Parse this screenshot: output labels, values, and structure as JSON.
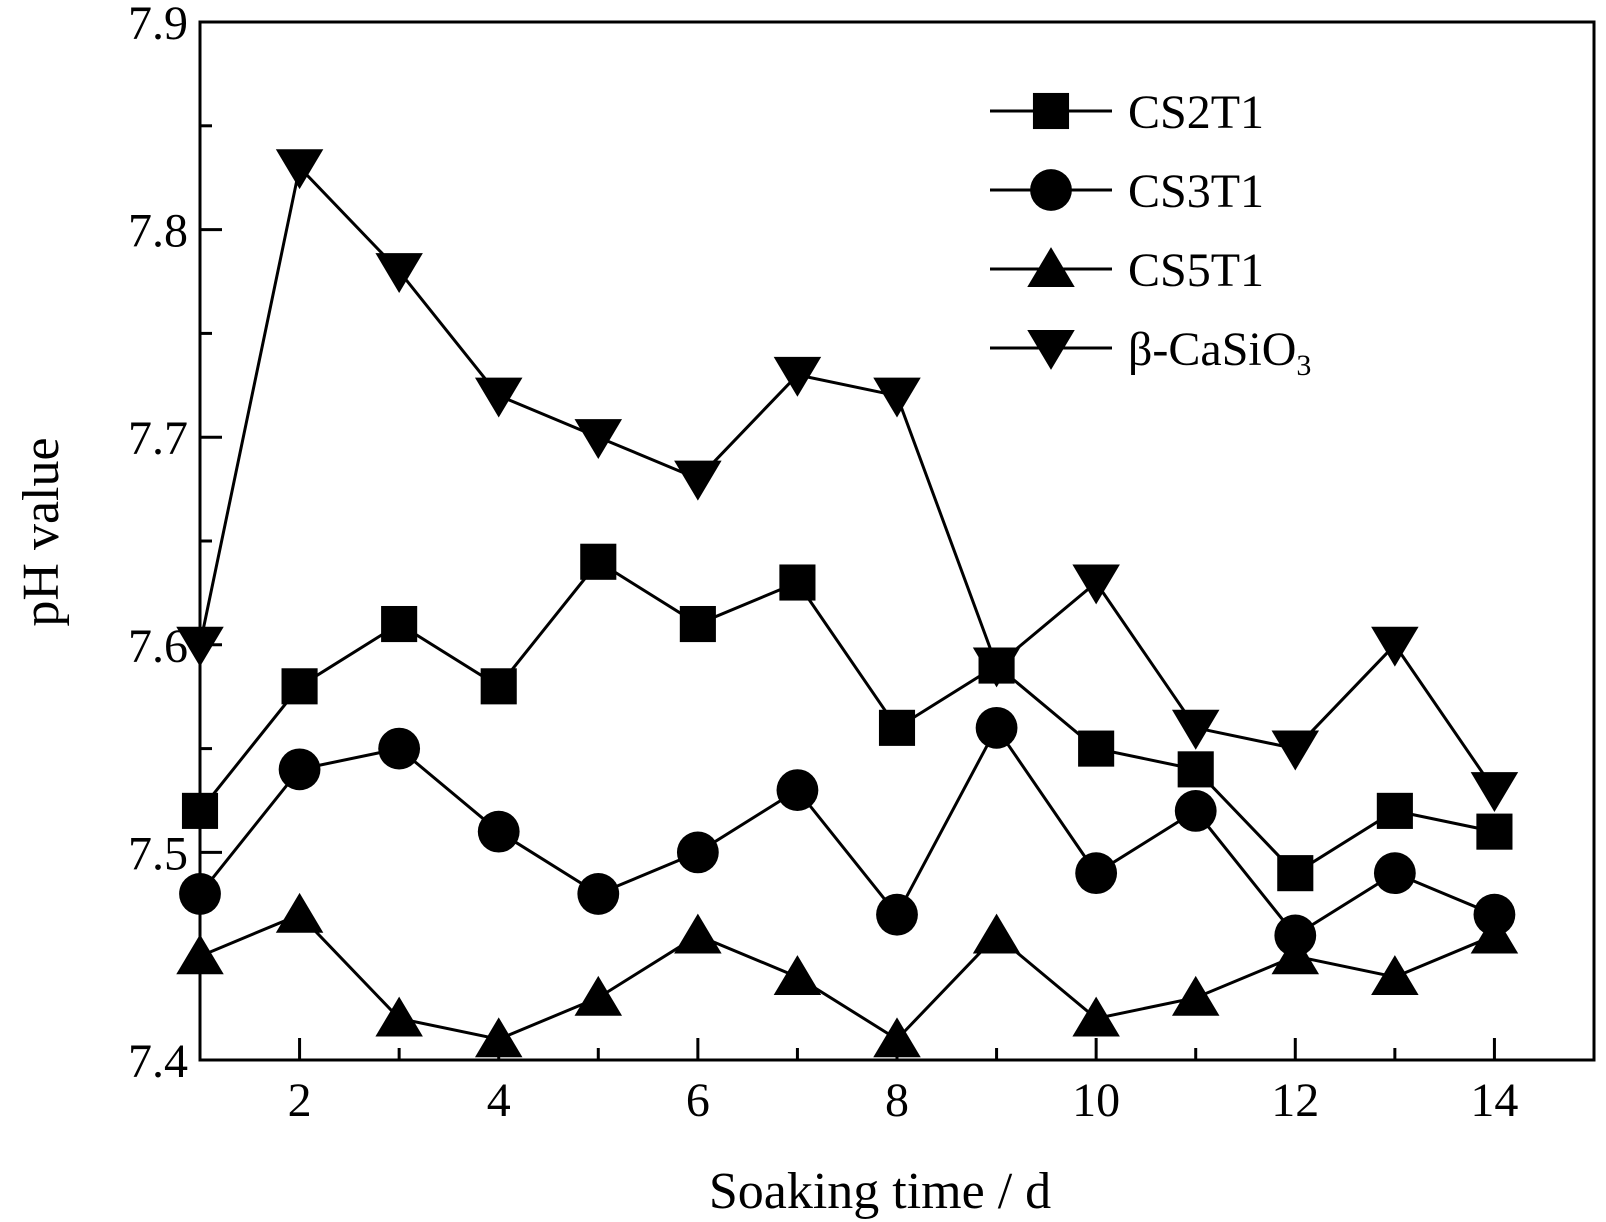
{
  "chart_data": {
    "type": "line",
    "title": "",
    "xlabel": "Soaking time / d",
    "ylabel": "pH value",
    "xlim": [
      1,
      15
    ],
    "ylim": [
      7.4,
      7.9
    ],
    "x_ticks": [
      2,
      4,
      6,
      8,
      10,
      12,
      14
    ],
    "x_minor_ticks": [
      3,
      5,
      7,
      9,
      11,
      13
    ],
    "y_ticks": [
      7.4,
      7.5,
      7.6,
      7.7,
      7.8,
      7.9
    ],
    "y_minor_ticks": [
      7.45,
      7.55,
      7.65,
      7.75,
      7.85
    ],
    "x_tick_labels": [
      "2",
      "4",
      "6",
      "8",
      "10",
      "12",
      "14"
    ],
    "y_tick_labels": [
      "7.4",
      "7.5",
      "7.6",
      "7.7",
      "7.8",
      "7.9"
    ],
    "grid": false,
    "legend_position": "top-right",
    "x": [
      1,
      2,
      3,
      4,
      5,
      6,
      7,
      8,
      9,
      10,
      11,
      12,
      13,
      14
    ],
    "series": [
      {
        "name": "CS2T1",
        "name_main": "CS2T1",
        "name_sub": "",
        "marker": "square",
        "values": [
          7.52,
          7.58,
          7.61,
          7.58,
          7.64,
          7.61,
          7.63,
          7.56,
          7.59,
          7.55,
          7.54,
          7.49,
          7.52,
          7.51
        ]
      },
      {
        "name": "CS3T1",
        "name_main": "CS3T1",
        "name_sub": "",
        "marker": "circle",
        "values": [
          7.48,
          7.54,
          7.55,
          7.51,
          7.48,
          7.5,
          7.53,
          7.47,
          7.56,
          7.49,
          7.52,
          7.46,
          7.49,
          7.47
        ]
      },
      {
        "name": "CS5T1",
        "name_main": "CS5T1",
        "name_sub": "",
        "marker": "triangle-up",
        "values": [
          7.45,
          7.47,
          7.42,
          7.41,
          7.43,
          7.46,
          7.44,
          7.41,
          7.46,
          7.42,
          7.43,
          7.45,
          7.44,
          7.46
        ]
      },
      {
        "name": "β-CaSiO3",
        "name_main": "β-CaSiO",
        "name_sub": "3",
        "marker": "triangle-down",
        "values": [
          7.6,
          7.83,
          7.78,
          7.72,
          7.7,
          7.68,
          7.73,
          7.72,
          7.59,
          7.63,
          7.56,
          7.55,
          7.6,
          7.53
        ]
      }
    ]
  }
}
